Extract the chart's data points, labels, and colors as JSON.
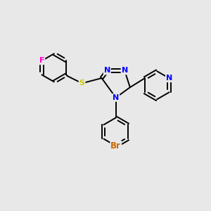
{
  "bg_color": "#e8e8e8",
  "bond_color": "#000000",
  "bond_lw": 1.4,
  "N_color": "#0000ff",
  "S_color": "#cccc00",
  "F_color": "#ff00cc",
  "Br_color": "#cc6600",
  "figsize": [
    3.0,
    3.0
  ],
  "dpi": 100,
  "xlim": [
    0,
    10
  ],
  "ylim": [
    0,
    10
  ]
}
